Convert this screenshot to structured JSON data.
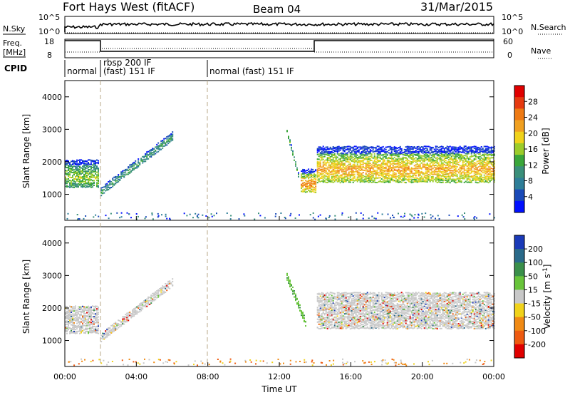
{
  "header": {
    "title": "Fort Hays West (fitACF)",
    "beam": "Beam 04",
    "date": "31/Mar/2015"
  },
  "top_labels": {
    "nsky": "N.Sky",
    "nsky_hi": "10^5",
    "nsky_lo": "10^0",
    "nsearch": "N.Search",
    "nsearch_hi": "10^5",
    "nsearch_lo": "10^0",
    "freq": "Freq.",
    "freq_unit": "[MHz]",
    "freq_hi": "18",
    "freq_lo": "8",
    "nave": "Nave",
    "nave_hi": "60",
    "nave_lo": "0",
    "cpid": "CPID"
  },
  "cpid_segments": [
    {
      "label": "normal",
      "start": 0,
      "end": 2
    },
    {
      "label": "rbsp 200 IF",
      "label2": "(fast) 151 IF",
      "start": 2,
      "end": 8
    },
    {
      "label": "normal (fast) 151 IF",
      "start": 8,
      "end": 24
    }
  ],
  "chart_data": [
    {
      "type": "heatmap",
      "title": "",
      "xlabel": "Time UT",
      "ylabel": "Slant Range [km]",
      "xlim": [
        0,
        24
      ],
      "ylim": [
        200,
        4500
      ],
      "x_ticks": [
        "00:00",
        "04:00",
        "08:00",
        "12:00",
        "16:00",
        "20:00",
        "00:00"
      ],
      "y_ticks": [
        1000,
        2000,
        3000,
        4000
      ],
      "colorbar": {
        "label": "Power [dB]",
        "ticks": [
          4,
          8,
          12,
          16,
          20,
          24,
          28
        ],
        "colors": [
          "#0010ff",
          "#1a4ab8",
          "#2e7e98",
          "#3a8f7a",
          "#3aa63a",
          "#9ccc2a",
          "#f0d21a",
          "#f0a020",
          "#ee7a14",
          "#e63a10",
          "#e00000"
        ]
      },
      "bands": [
        {
          "t": [
            0,
            1.9
          ],
          "lo": 1250,
          "hi": 2100,
          "power": 14
        },
        {
          "t": [
            2,
            6.0
          ],
          "lo_start": 1000,
          "lo_end": 2700,
          "width": 250,
          "power": 10
        },
        {
          "t": [
            12.4,
            13.1
          ],
          "lo_start": 2900,
          "lo_end": 1400,
          "width": 180,
          "power": 12
        },
        {
          "t": [
            13.2,
            14
          ],
          "lo": 1100,
          "hi": 1800,
          "power": 22
        },
        {
          "t": [
            14.1,
            24
          ],
          "lo": 1400,
          "hi": 2500,
          "power": 20
        }
      ]
    },
    {
      "type": "heatmap",
      "title": "",
      "xlabel": "Time UT",
      "ylabel": "Slant Range [km]",
      "xlim": [
        0,
        24
      ],
      "ylim": [
        200,
        4500
      ],
      "x_ticks": [
        "00:00",
        "04:00",
        "08:00",
        "12:00",
        "16:00",
        "20:00",
        "00:00"
      ],
      "y_ticks": [
        1000,
        2000,
        3000,
        4000
      ],
      "colorbar": {
        "label": "Velocity [m s^-1]",
        "ticks": [
          200,
          100,
          50,
          15,
          -15,
          -50,
          -100,
          -200
        ],
        "colors": [
          "#1a3ab8",
          "#2a6a8a",
          "#3a8f4a",
          "#68c43a",
          "#c8c8c8",
          "#f0d21a",
          "#f08a14",
          "#ee5a10",
          "#e00000"
        ]
      },
      "bands": [
        {
          "t": [
            0,
            1.9
          ],
          "lo": 1250,
          "hi": 2100,
          "velocity": 0
        },
        {
          "t": [
            2,
            6.0
          ],
          "lo_start": 1000,
          "lo_end": 2700,
          "width": 250,
          "velocity": 0
        },
        {
          "t": [
            12.4,
            13.5
          ],
          "lo_start": 2900,
          "lo_end": 1400,
          "width": 220,
          "velocity": 40
        },
        {
          "t": [
            14.1,
            24
          ],
          "lo": 1400,
          "hi": 2500,
          "velocity": 0
        }
      ]
    }
  ]
}
